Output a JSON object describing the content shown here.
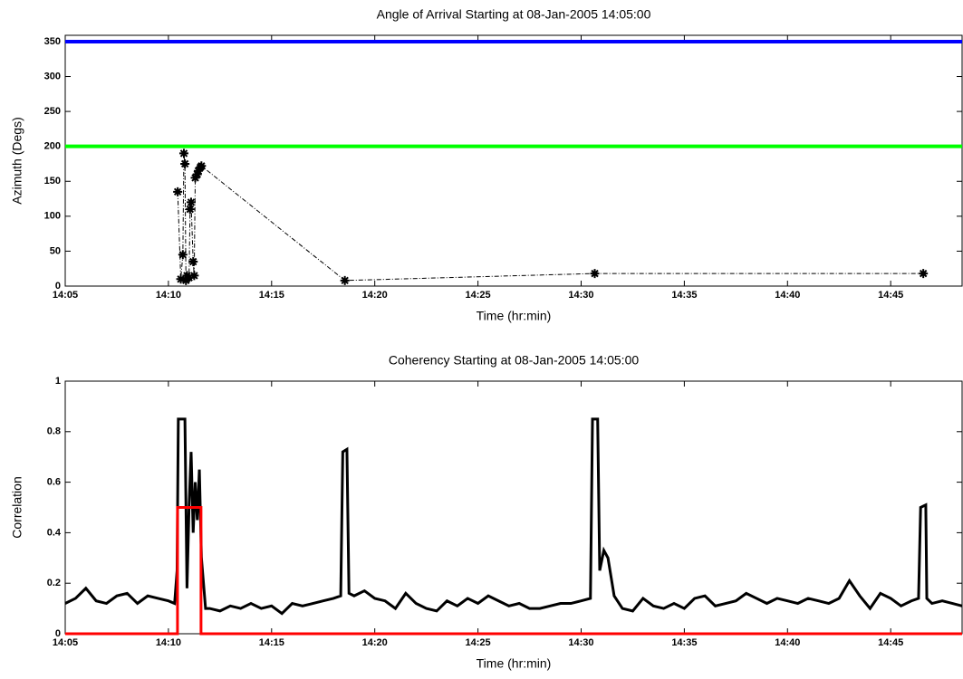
{
  "chart_data": [
    {
      "type": "scatter",
      "title": "Angle of Arrival Starting at 08-Jan-2005 14:05:00",
      "xlabel": "Time (hr:min)",
      "ylabel": "Azimuth (Degs)",
      "xlim": [
        845,
        888.46
      ],
      "ylim": [
        0,
        359
      ],
      "xticks": [
        {
          "value": 845,
          "label": "14:05"
        },
        {
          "value": 850,
          "label": "14:10"
        },
        {
          "value": 855,
          "label": "14:15"
        },
        {
          "value": 860,
          "label": "14:20"
        },
        {
          "value": 865,
          "label": "14:25"
        },
        {
          "value": 870,
          "label": "14:30"
        },
        {
          "value": 875,
          "label": "14:35"
        },
        {
          "value": 880,
          "label": "14:40"
        },
        {
          "value": 885,
          "label": "14:45"
        }
      ],
      "yticks": [
        0,
        50,
        100,
        150,
        200,
        250,
        300,
        350
      ],
      "hlines": [
        {
          "value": 350,
          "color": "#0000ff"
        },
        {
          "value": 200,
          "color": "#00ff00"
        }
      ],
      "series": [
        {
          "color": "#000000",
          "x": [
            850.45,
            850.6,
            850.7,
            850.75,
            850.8,
            850.85,
            850.9,
            851.0,
            851.05,
            851.1,
            851.2,
            851.25,
            851.3,
            851.4,
            851.45,
            851.55,
            851.6,
            858.55,
            870.66,
            886.58
          ],
          "values": [
            135,
            10,
            45,
            190,
            175,
            8,
            15,
            12,
            110,
            120,
            35,
            15,
            155,
            160,
            165,
            170,
            172,
            8,
            18,
            18
          ]
        }
      ]
    },
    {
      "type": "line",
      "title": "Coherency Starting at 08-Jan-2005 14:05:00",
      "xlabel": "Time (hr:min)",
      "ylabel": "Correlation",
      "xlim": [
        845,
        888.46
      ],
      "ylim": [
        0,
        1
      ],
      "xticks": [
        {
          "value": 845,
          "label": "14:05"
        },
        {
          "value": 850,
          "label": "14:10"
        },
        {
          "value": 855,
          "label": "14:15"
        },
        {
          "value": 860,
          "label": "14:20"
        },
        {
          "value": 865,
          "label": "14:25"
        },
        {
          "value": 870,
          "label": "14:30"
        },
        {
          "value": 875,
          "label": "14:35"
        },
        {
          "value": 880,
          "label": "14:40"
        },
        {
          "value": 885,
          "label": "14:45"
        }
      ],
      "yticks": [
        0,
        0.2,
        0.4,
        0.6,
        0.8,
        1
      ],
      "series": [
        {
          "color": "#000000",
          "x": [
            845,
            845.5,
            846,
            846.5,
            847,
            847.5,
            848,
            848.5,
            849,
            849.5,
            850,
            850.3,
            850.42,
            850.48,
            850.8,
            850.9,
            851.0,
            851.1,
            851.2,
            851.3,
            851.4,
            851.5,
            851.6,
            851.8,
            852,
            852.5,
            853,
            853.5,
            854,
            854.5,
            855,
            855.5,
            856,
            856.5,
            857,
            857.5,
            858,
            858.35,
            858.45,
            858.65,
            858.75,
            859,
            859.5,
            860,
            860.5,
            861,
            861.5,
            862,
            862.5,
            863,
            863.5,
            864,
            864.5,
            865,
            865.5,
            866,
            866.5,
            867,
            867.5,
            868,
            868.5,
            869,
            869.5,
            870,
            870.45,
            870.55,
            870.8,
            870.9,
            871.1,
            871.3,
            871.6,
            872,
            872.5,
            873,
            873.5,
            874,
            874.5,
            875,
            875.5,
            876,
            876.5,
            877,
            877.5,
            878,
            878.5,
            879,
            879.5,
            880,
            880.5,
            881,
            881.5,
            882,
            882.5,
            883,
            883.5,
            884,
            884.5,
            885,
            885.5,
            886,
            886.35,
            886.45,
            886.7,
            886.75,
            887,
            887.5,
            888,
            888.46
          ],
          "values": [
            0.12,
            0.14,
            0.18,
            0.13,
            0.12,
            0.15,
            0.16,
            0.12,
            0.15,
            0.14,
            0.13,
            0.12,
            0.25,
            0.85,
            0.85,
            0.18,
            0.5,
            0.72,
            0.4,
            0.6,
            0.45,
            0.65,
            0.3,
            0.1,
            0.1,
            0.09,
            0.11,
            0.1,
            0.12,
            0.1,
            0.11,
            0.08,
            0.12,
            0.11,
            0.12,
            0.13,
            0.14,
            0.15,
            0.72,
            0.73,
            0.16,
            0.15,
            0.17,
            0.14,
            0.13,
            0.1,
            0.16,
            0.12,
            0.1,
            0.09,
            0.13,
            0.11,
            0.14,
            0.12,
            0.15,
            0.13,
            0.11,
            0.12,
            0.1,
            0.1,
            0.11,
            0.12,
            0.12,
            0.13,
            0.14,
            0.85,
            0.85,
            0.25,
            0.33,
            0.3,
            0.15,
            0.1,
            0.09,
            0.14,
            0.11,
            0.1,
            0.12,
            0.1,
            0.14,
            0.15,
            0.11,
            0.12,
            0.13,
            0.16,
            0.14,
            0.12,
            0.14,
            0.13,
            0.12,
            0.14,
            0.13,
            0.12,
            0.14,
            0.21,
            0.15,
            0.1,
            0.16,
            0.14,
            0.11,
            0.13,
            0.14,
            0.5,
            0.51,
            0.14,
            0.12,
            0.13,
            0.12,
            0.11
          ]
        },
        {
          "color": "#ff0000",
          "x": [
            845,
            850.44,
            850.44,
            851.58,
            851.58,
            888.46
          ],
          "values": [
            0,
            0,
            0.5,
            0.5,
            0,
            0
          ]
        }
      ]
    }
  ]
}
